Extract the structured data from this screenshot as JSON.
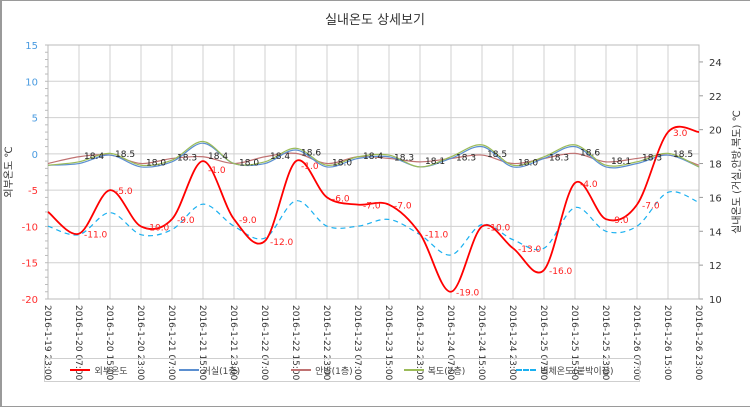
{
  "chart_data": {
    "type": "line",
    "title": "실내온도 상세보기",
    "y_left_label": "외부온도 ℃",
    "y_right_label": "실내온도 (거실,안방,복도) ℃",
    "y_left_range": [
      -20,
      15
    ],
    "y_left_ticks": [
      15,
      10,
      5,
      0,
      -5,
      -10,
      -15,
      -20
    ],
    "y_right_range": [
      10,
      25
    ],
    "y_right_ticks": [
      24,
      22,
      20,
      18,
      16,
      14,
      12,
      10
    ],
    "grid": true,
    "legend_position": "bottom",
    "categories": [
      "2016-1-19 23:00",
      "2016-1-20 07:00",
      "2016-1-20 15:00",
      "2016-1-20 23:00",
      "2016-1-21 07:00",
      "2016-1-21 15:00",
      "2016-1-21 23:00",
      "2016-1-22 07:00",
      "2016-1-22 15:00",
      "2016-1-22 23:00",
      "2016-1-23 07:00",
      "2016-1-23 15:00",
      "2016-1-23 23:00",
      "2016-1-24 07:00",
      "2016-1-24 15:00",
      "2016-1-24 23:00",
      "2016-1-25 07:00",
      "2016-1-25 15:00",
      "2016-1-25 23:00",
      "2016-1-26 07:00",
      "2016-1-26 15:00",
      "2016-1-26 23:00"
    ],
    "series": [
      {
        "name": "외부온도",
        "axis": "left",
        "color": "#ff0000",
        "dashed": false,
        "labeled": true,
        "label_color": "#ff2020",
        "values": [
          -8,
          -11,
          -5,
          -10,
          -9,
          -1,
          -9,
          -12,
          -1,
          -6,
          -7,
          -7,
          -11,
          -19,
          -10,
          -13,
          -16,
          -4,
          -9,
          -7,
          3,
          3
        ]
      },
      {
        "name": "거실(1층)",
        "axis": "right",
        "color": "#5b8fd0",
        "dashed": false,
        "labeled": false,
        "values": [
          17.9,
          18.0,
          18.5,
          17.8,
          18.1,
          19.2,
          18.0,
          18.0,
          18.8,
          17.8,
          18.3,
          18.4,
          17.8,
          18.3,
          19.0,
          17.8,
          18.3,
          19.0,
          17.8,
          18.0,
          18.5,
          17.8
        ]
      },
      {
        "name": "안방(1층)",
        "axis": "right",
        "color": "#c07272",
        "dashed": false,
        "labeled": true,
        "label_color": "#222222",
        "values": [
          18.0,
          18.4,
          18.5,
          18.0,
          18.3,
          18.4,
          18.0,
          18.4,
          18.6,
          18.0,
          18.4,
          18.3,
          18.1,
          18.3,
          18.5,
          18.0,
          18.3,
          18.6,
          18.1,
          18.3,
          18.5,
          17.9
        ]
      },
      {
        "name": "복도(2층)",
        "axis": "right",
        "color": "#9bbb59",
        "dashed": false,
        "labeled": false,
        "values": [
          17.9,
          18.1,
          18.6,
          17.9,
          18.2,
          19.3,
          18.0,
          18.1,
          18.9,
          17.9,
          18.4,
          18.5,
          17.8,
          18.4,
          19.1,
          17.9,
          18.4,
          19.1,
          17.9,
          18.1,
          18.6,
          17.8
        ]
      },
      {
        "name": "벽체온도(붙박이장)",
        "axis": "right",
        "color": "#1ab0f0",
        "dashed": true,
        "labeled": false,
        "values": [
          14.3,
          13.8,
          15.1,
          13.8,
          14.1,
          15.6,
          14.3,
          13.6,
          15.8,
          14.3,
          14.3,
          14.7,
          13.8,
          12.6,
          14.4,
          13.5,
          13.0,
          15.4,
          14.0,
          14.3,
          16.3,
          15.7
        ]
      }
    ]
  },
  "colors": {
    "positive_tick": "#4a9be0",
    "negative_tick": "#ff3030",
    "grid": "#d0d0d0"
  }
}
